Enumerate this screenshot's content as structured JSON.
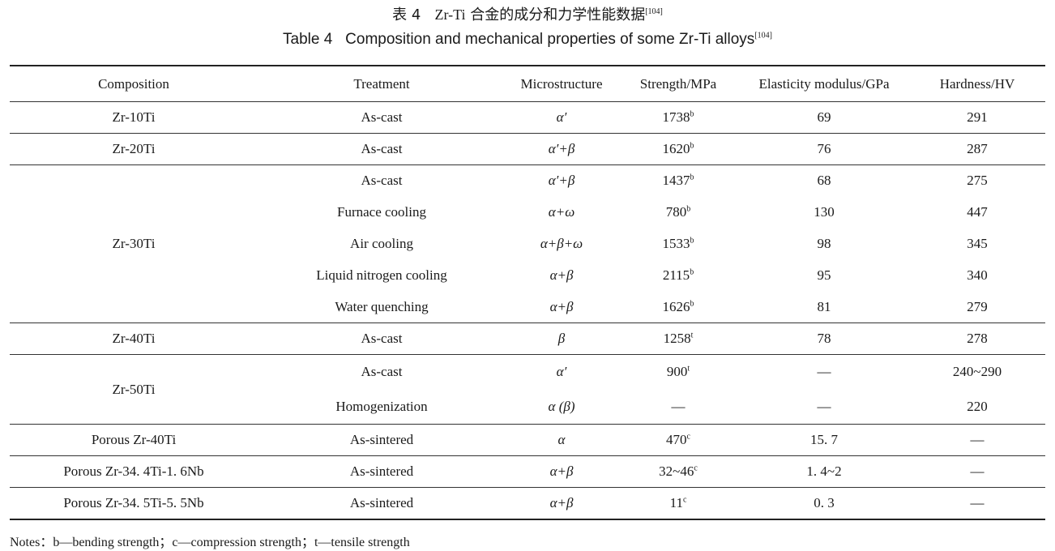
{
  "title_cn": {
    "label": "表 4",
    "prefix": "Zr-Ti",
    "text": "合金的成分和力学性能数据",
    "ref": "[104]"
  },
  "title_en": {
    "label": "Table 4",
    "text": "Composition and mechanical properties of some Zr-Ti alloys",
    "ref": "[104]"
  },
  "table": {
    "headers": [
      "Composition",
      "Treatment",
      "Microstructure",
      "Strength/MPa",
      "Elasticity modulus/GPa",
      "Hardness/HV"
    ],
    "groups": [
      {
        "composition": "Zr-10Ti",
        "rows": [
          {
            "treatment": "As-cast",
            "microstructure": "α′",
            "strength": "1738",
            "strength_note": "b",
            "modulus": "69",
            "hardness": "291"
          }
        ]
      },
      {
        "composition": "Zr-20Ti",
        "rows": [
          {
            "treatment": "As-cast",
            "microstructure": "α′+β",
            "strength": "1620",
            "strength_note": "b",
            "modulus": "76",
            "hardness": "287"
          }
        ]
      },
      {
        "composition": "Zr-30Ti",
        "rows": [
          {
            "treatment": "As-cast",
            "microstructure": "α′+β",
            "strength": "1437",
            "strength_note": "b",
            "modulus": "68",
            "hardness": "275"
          },
          {
            "treatment": "Furnace cooling",
            "microstructure": "α+ω",
            "strength": "780",
            "strength_note": "b",
            "modulus": "130",
            "hardness": "447"
          },
          {
            "treatment": "Air cooling",
            "microstructure": "α+β+ω",
            "strength": "1533",
            "strength_note": "b",
            "modulus": "98",
            "hardness": "345"
          },
          {
            "treatment": "Liquid nitrogen cooling",
            "microstructure": "α+β",
            "strength": "2115",
            "strength_note": "b",
            "modulus": "95",
            "hardness": "340"
          },
          {
            "treatment": "Water quenching",
            "microstructure": "α+β",
            "strength": "1626",
            "strength_note": "b",
            "modulus": "81",
            "hardness": "279"
          }
        ]
      },
      {
        "composition": "Zr-40Ti",
        "rows": [
          {
            "treatment": "As-cast",
            "microstructure": "β",
            "strength": "1258",
            "strength_note": "t",
            "modulus": "78",
            "hardness": "278"
          }
        ]
      },
      {
        "composition": "Zr-50Ti",
        "rows": [
          {
            "treatment": "As-cast",
            "microstructure": "α′",
            "strength": "900",
            "strength_note": "t",
            "modulus": "—",
            "hardness": "240~290"
          },
          {
            "treatment": "Homogenization",
            "microstructure": "α (β)",
            "strength": "—",
            "strength_note": "",
            "modulus": "—",
            "hardness": "220"
          }
        ]
      },
      {
        "composition": "Porous Zr-40Ti",
        "rows": [
          {
            "treatment": "As-sintered",
            "microstructure": "α",
            "strength": "470",
            "strength_note": "c",
            "modulus": "15. 7",
            "hardness": "—"
          }
        ]
      },
      {
        "composition": "Porous Zr-34. 4Ti-1. 6Nb",
        "rows": [
          {
            "treatment": "As-sintered",
            "microstructure": "α+β",
            "strength": "32~46",
            "strength_note": "c",
            "modulus": "1. 4~2",
            "hardness": "—"
          }
        ]
      },
      {
        "composition": "Porous Zr-34. 5Ti-5. 5Nb",
        "rows": [
          {
            "treatment": "As-sintered",
            "microstructure": "α+β",
            "strength": "11",
            "strength_note": "c",
            "modulus": "0. 3",
            "hardness": "—"
          }
        ]
      }
    ]
  },
  "notes": "Notes：b—bending strength；c—compression strength；t—tensile strength"
}
